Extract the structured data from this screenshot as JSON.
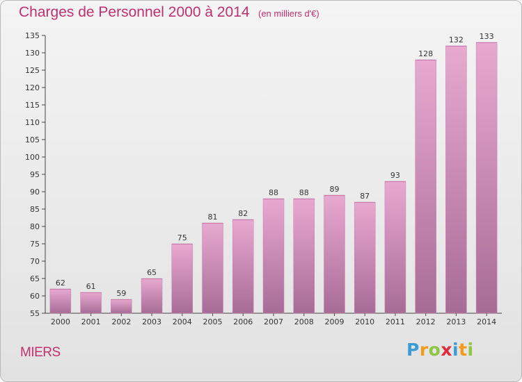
{
  "title": "Charges de Personnel 2000 à 2014",
  "subtitle": "(en milliers d'€)",
  "commune": "MIERS",
  "logo": {
    "text": "Proxiti",
    "letters": [
      {
        "char": "P",
        "color": "#3a9bd5"
      },
      {
        "char": "r",
        "color": "#f29b1d"
      },
      {
        "char": "o",
        "color": "#8dc63f"
      },
      {
        "char": "x",
        "color": "#e02b3a"
      },
      {
        "char": "i",
        "color": "#3a9bd5"
      },
      {
        "char": "t",
        "color": "#f29b1d"
      },
      {
        "char": "i",
        "color": "#8dc63f"
      }
    ]
  },
  "colors": {
    "title": "#c0306f",
    "bar_top": "#e8a9d0",
    "bar_bottom": "#a76c96",
    "bar_side": "#c584b1"
  },
  "chart_data": {
    "type": "bar",
    "categories": [
      "2000",
      "2001",
      "2002",
      "2003",
      "2004",
      "2005",
      "2006",
      "2007",
      "2008",
      "2009",
      "2010",
      "2011",
      "2012",
      "2013",
      "2014"
    ],
    "values": [
      62,
      61,
      59,
      65,
      75,
      81,
      82,
      88,
      88,
      89,
      87,
      93,
      128,
      132,
      133
    ],
    "ylim": [
      55,
      135
    ],
    "yticks": [
      55,
      60,
      65,
      70,
      75,
      80,
      85,
      90,
      95,
      100,
      105,
      110,
      115,
      120,
      125,
      130,
      135
    ],
    "grid": false,
    "data_labels": true
  }
}
